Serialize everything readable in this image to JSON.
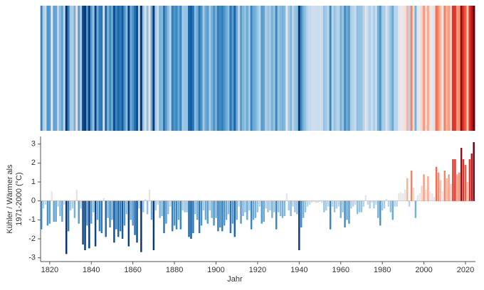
{
  "chart_data": {
    "type": "stripes_bar",
    "xlabel": "Jahr",
    "ylabel": [
      "Kühler / Wärmer als",
      "1971-2000 (°C)"
    ],
    "x": [
      1816,
      1817,
      1818,
      1819,
      1820,
      1821,
      1822,
      1823,
      1824,
      1825,
      1826,
      1827,
      1828,
      1829,
      1830,
      1831,
      1832,
      1833,
      1834,
      1835,
      1836,
      1837,
      1838,
      1839,
      1840,
      1841,
      1842,
      1843,
      1844,
      1845,
      1846,
      1847,
      1848,
      1849,
      1850,
      1851,
      1852,
      1853,
      1854,
      1855,
      1856,
      1857,
      1858,
      1859,
      1860,
      1861,
      1862,
      1863,
      1864,
      1865,
      1866,
      1867,
      1868,
      1869,
      1870,
      1871,
      1872,
      1873,
      1874,
      1875,
      1876,
      1877,
      1878,
      1879,
      1880,
      1881,
      1882,
      1883,
      1884,
      1885,
      1886,
      1887,
      1888,
      1889,
      1890,
      1891,
      1892,
      1893,
      1894,
      1895,
      1896,
      1897,
      1898,
      1899,
      1900,
      1901,
      1902,
      1903,
      1904,
      1905,
      1906,
      1907,
      1908,
      1909,
      1910,
      1911,
      1912,
      1913,
      1914,
      1915,
      1916,
      1917,
      1918,
      1919,
      1920,
      1921,
      1922,
      1923,
      1924,
      1925,
      1926,
      1927,
      1928,
      1929,
      1930,
      1931,
      1932,
      1933,
      1934,
      1935,
      1936,
      1937,
      1938,
      1939,
      1940,
      1941,
      1942,
      1943,
      1944,
      1945,
      1946,
      1947,
      1948,
      1949,
      1950,
      1951,
      1952,
      1953,
      1954,
      1955,
      1956,
      1957,
      1958,
      1959,
      1960,
      1961,
      1962,
      1963,
      1964,
      1965,
      1966,
      1967,
      1968,
      1969,
      1970,
      1971,
      1972,
      1973,
      1974,
      1975,
      1976,
      1977,
      1978,
      1979,
      1980,
      1981,
      1982,
      1983,
      1984,
      1985,
      1986,
      1987,
      1988,
      1989,
      1990,
      1991,
      1992,
      1993,
      1994,
      1995,
      1996,
      1997,
      1998,
      1999,
      2000,
      2001,
      2002,
      2003,
      2004,
      2005,
      2006,
      2007,
      2008,
      2009,
      2010,
      2011,
      2012,
      2013,
      2014,
      2015,
      2016,
      2017,
      2018,
      2019,
      2020,
      2021,
      2022,
      2023,
      2024
    ],
    "values": [
      -1.5,
      -0.4,
      -0.2,
      -1.3,
      -1.2,
      0.5,
      -1.1,
      -1.1,
      -0.3,
      -0.8,
      -1.1,
      -0.2,
      -2.8,
      -1.6,
      -0.5,
      -0.4,
      -0.9,
      0.6,
      -1.2,
      -0.4,
      -2.3,
      -2.6,
      -1.3,
      -2.5,
      -1.2,
      -0.6,
      -2.4,
      -1.0,
      -1.6,
      -1.7,
      0.15,
      -1.9,
      -0.9,
      -1.4,
      -1.0,
      -2.2,
      -1.5,
      -1.9,
      -1.6,
      -2.0,
      -1.3,
      -0.7,
      -2.4,
      -1.0,
      -1.3,
      -1.8,
      -2.2,
      -0.4,
      -2.7,
      -0.6,
      0.1,
      -0.7,
      0.6,
      -1.0,
      -2.6,
      -0.5,
      -0.2,
      -0.9,
      -0.8,
      -1.7,
      -1.2,
      -0.7,
      -0.3,
      -1.6,
      -1.3,
      -1.5,
      -1.0,
      -1.5,
      -0.5,
      -0.6,
      -0.6,
      -1.9,
      -2.0,
      -1.7,
      -0.7,
      -1.0,
      -1.7,
      -1.3,
      -0.5,
      -1.0,
      -1.2,
      -0.5,
      -0.9,
      -1.3,
      -0.9,
      -1.6,
      -1.4,
      -1.6,
      -1.3,
      -1.0,
      -0.7,
      -1.7,
      -1.2,
      -1.9,
      -1.0,
      -0.3,
      -1.2,
      -0.8,
      -0.6,
      -1.0,
      -0.5,
      -1.5,
      -1.0,
      -0.9,
      -0.6,
      -0.3,
      -1.2,
      -1.1,
      -0.4,
      -0.6,
      -0.5,
      -0.9,
      -0.6,
      -1.5,
      -0.6,
      -0.8,
      -0.9,
      -0.8,
      0.4,
      -0.5,
      -0.8,
      -0.3,
      -0.6,
      -0.7,
      -2.6,
      -1.4,
      -0.9,
      -0.6,
      -0.3,
      -0.2,
      -0.1,
      -0.05,
      -0.1,
      -0.1,
      -0.05,
      -0.1,
      -0.6,
      -0.5,
      -0.3,
      -1.5,
      -0.3,
      -0.6,
      -0.4,
      -0.3,
      -0.9,
      -0.6,
      -1.4,
      -1.0,
      -1.2,
      -0.4,
      -0.3,
      -0.2,
      -0.7,
      -0.6,
      -0.6,
      -0.3,
      0.3,
      -0.2,
      -0.4,
      -0.1,
      -0.4,
      -0.2,
      -0.9,
      -1.3,
      -0.5,
      -0.4,
      0.1,
      -0.3,
      -0.6,
      -1.0,
      -0.3,
      -0.3,
      0.4,
      0.45,
      0.4,
      0.6,
      1.2,
      -0.3,
      1.6,
      0.7,
      -0.9,
      0.3,
      0.4,
      0.8,
      1.4,
      0.6,
      1.3,
      0.5,
      0.4,
      0.2,
      1.8,
      1.5,
      1.1,
      0.5,
      1.6,
      1.2,
      1.4,
      0.9,
      2.2,
      2.2,
      1.4,
      1.5,
      2.8,
      2.2,
      1.9,
      1.0,
      2.2,
      2.5,
      3.1
    ],
    "xlim": [
      1815.6,
      2024.8
    ],
    "xticks": [
      1820,
      1840,
      1860,
      1880,
      1900,
      1920,
      1940,
      1960,
      1980,
      2000,
      2020
    ],
    "ylim": [
      -3.2,
      3.4
    ],
    "yticks": [
      -3,
      -2,
      -1,
      0,
      1,
      2,
      3
    ],
    "colormap": [
      "#08306b",
      "#08519c",
      "#3a87c2",
      "#7db6db",
      "#c6dbef",
      "#ede8e8",
      "#fcbba1",
      "#fb6a4a",
      "#cb181d",
      "#67000d"
    ],
    "clim": [
      -2.8,
      3.1
    ]
  }
}
